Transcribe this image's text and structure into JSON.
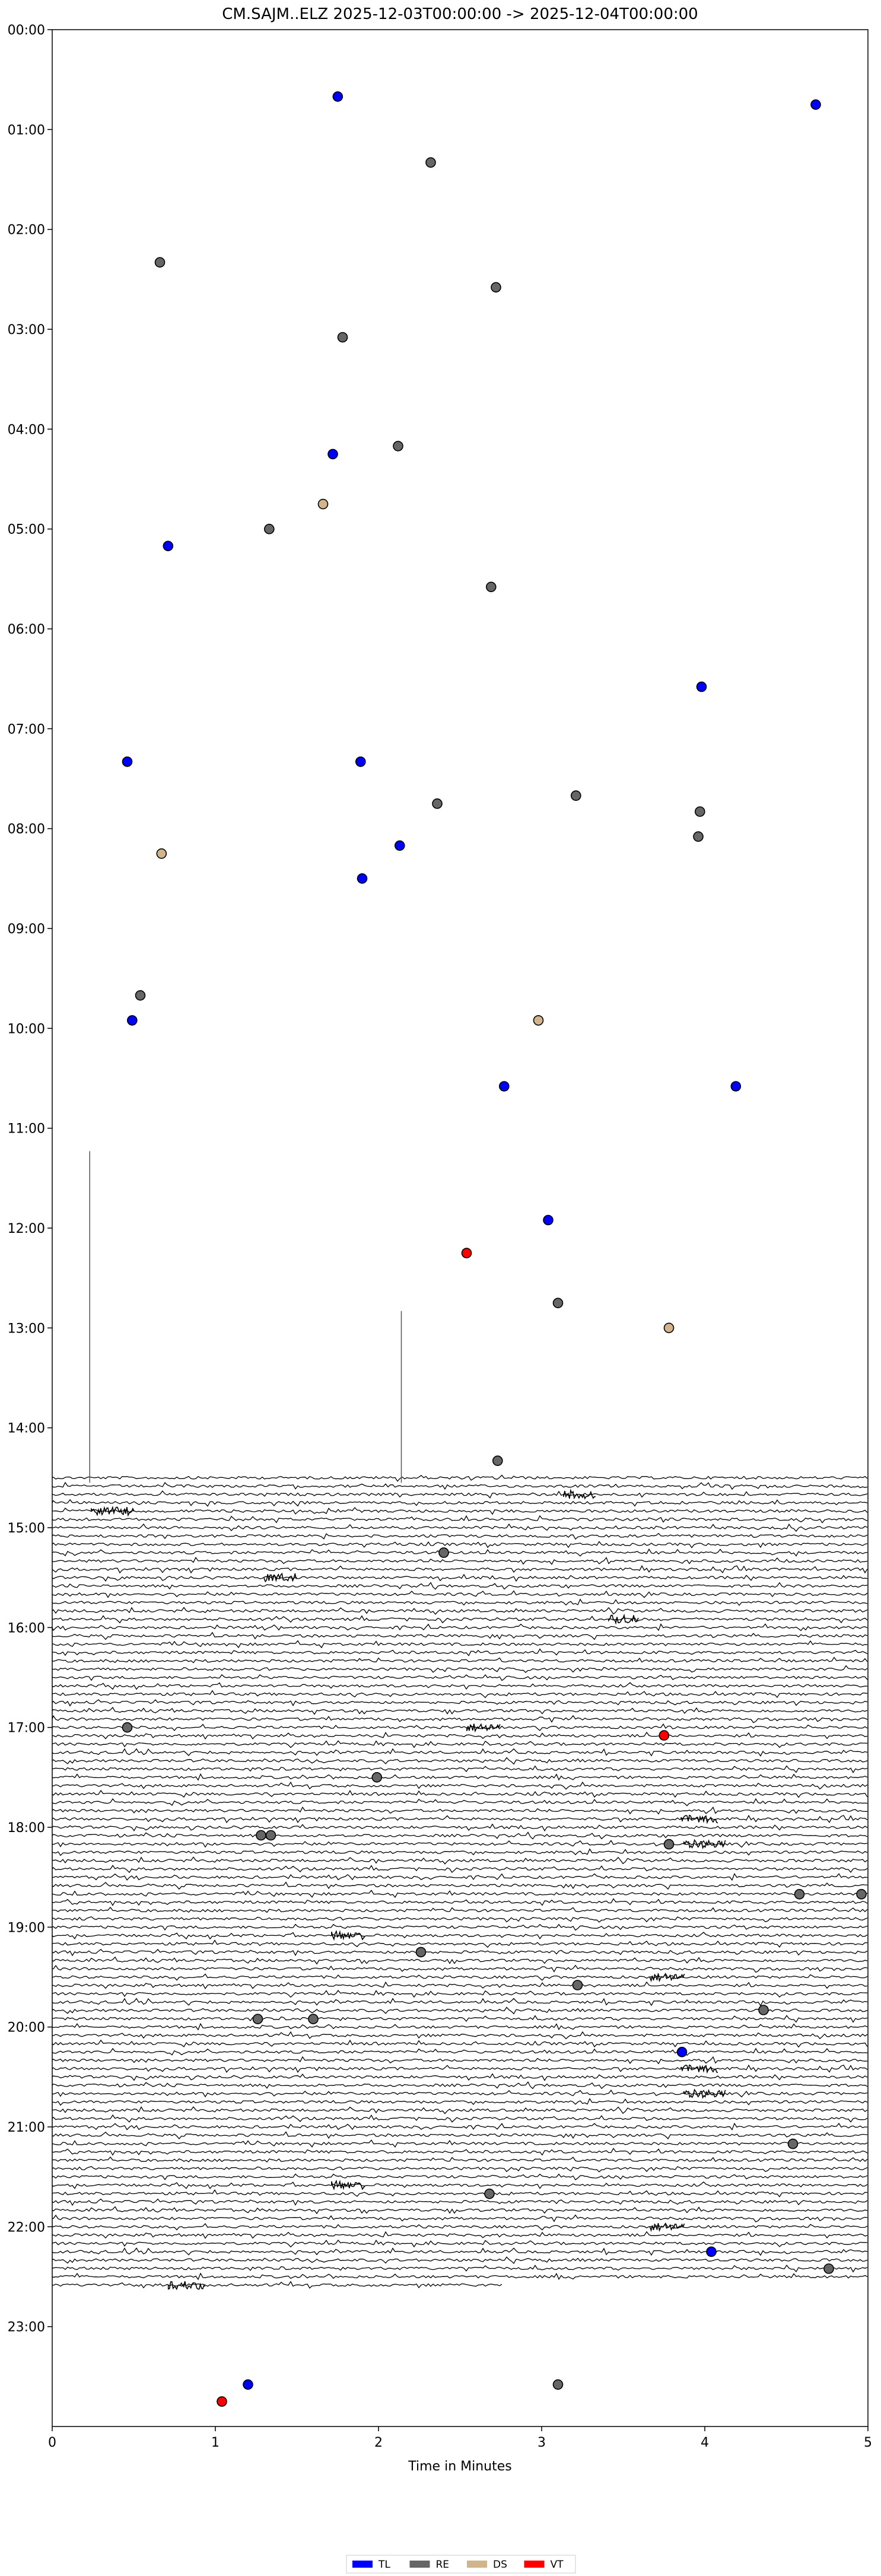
{
  "chart_data": {
    "type": "scatter",
    "title": "CM.SAJM..ELZ  2025-12-03T00:00:00 -> 2025-12-04T00:00:00",
    "xlabel": "Time in Minutes",
    "ylabel": "",
    "xlim": [
      0,
      5
    ],
    "ylim_hours": [
      0,
      24
    ],
    "y_direction": "top-to-bottom",
    "x_ticks": [
      "0",
      "1",
      "2",
      "3",
      "4",
      "5"
    ],
    "y_ticks": [
      "00:00",
      "01:00",
      "02:00",
      "03:00",
      "04:00",
      "05:00",
      "06:00",
      "07:00",
      "08:00",
      "09:00",
      "10:00",
      "11:00",
      "12:00",
      "13:00",
      "14:00",
      "15:00",
      "16:00",
      "17:00",
      "18:00",
      "19:00",
      "20:00",
      "21:00",
      "22:00",
      "23:00"
    ],
    "grid": false,
    "legend": {
      "placement": "bottom-center",
      "entries": [
        {
          "label": "TL",
          "color": "#0000ff"
        },
        {
          "label": "RE",
          "color": "#666666"
        },
        {
          "label": "DS",
          "color": "#d2b48c"
        },
        {
          "label": "VT",
          "color": "#ff0000"
        }
      ]
    },
    "trace": {
      "color": "#000000",
      "start_hour": 14.5,
      "end_hour": 22.6,
      "end_minute_last_line": 2.77,
      "line_interval_minutes": 5
    },
    "spikes": [
      {
        "x": 0.23,
        "top_hour": 11.23,
        "bottom_hour": 14.55
      },
      {
        "x": 2.14,
        "top_hour": 12.83,
        "bottom_hour": 14.55
      }
    ],
    "series": [
      {
        "name": "TL",
        "color": "#0000ff",
        "points": [
          {
            "x": 1.75,
            "hour": 0.67
          },
          {
            "x": 4.68,
            "hour": 0.75
          },
          {
            "x": 1.72,
            "hour": 4.25
          },
          {
            "x": 0.71,
            "hour": 5.17
          },
          {
            "x": 3.98,
            "hour": 6.58
          },
          {
            "x": 0.46,
            "hour": 7.33
          },
          {
            "x": 1.89,
            "hour": 7.33
          },
          {
            "x": 2.13,
            "hour": 8.17
          },
          {
            "x": 1.9,
            "hour": 8.5
          },
          {
            "x": 0.49,
            "hour": 9.92
          },
          {
            "x": 2.77,
            "hour": 10.58
          },
          {
            "x": 4.19,
            "hour": 10.58
          },
          {
            "x": 3.04,
            "hour": 11.92
          },
          {
            "x": 3.86,
            "hour": 20.25
          },
          {
            "x": 4.04,
            "hour": 22.25
          },
          {
            "x": 1.2,
            "hour": 23.58
          }
        ]
      },
      {
        "name": "RE",
        "color": "#666666",
        "points": [
          {
            "x": 2.32,
            "hour": 1.33
          },
          {
            "x": 0.66,
            "hour": 2.33
          },
          {
            "x": 2.72,
            "hour": 2.58
          },
          {
            "x": 1.78,
            "hour": 3.08
          },
          {
            "x": 2.12,
            "hour": 4.17
          },
          {
            "x": 1.33,
            "hour": 5.0
          },
          {
            "x": 2.69,
            "hour": 5.58
          },
          {
            "x": 2.36,
            "hour": 7.75
          },
          {
            "x": 3.21,
            "hour": 7.67
          },
          {
            "x": 3.97,
            "hour": 7.83
          },
          {
            "x": 3.96,
            "hour": 8.08
          },
          {
            "x": 0.54,
            "hour": 9.67
          },
          {
            "x": 3.1,
            "hour": 12.75
          },
          {
            "x": 2.73,
            "hour": 14.33
          },
          {
            "x": 2.4,
            "hour": 15.25
          },
          {
            "x": 0.46,
            "hour": 17.0
          },
          {
            "x": 1.99,
            "hour": 17.5
          },
          {
            "x": 1.28,
            "hour": 18.08
          },
          {
            "x": 1.34,
            "hour": 18.08
          },
          {
            "x": 3.78,
            "hour": 18.17
          },
          {
            "x": 4.58,
            "hour": 18.67
          },
          {
            "x": 4.96,
            "hour": 18.67
          },
          {
            "x": 2.26,
            "hour": 19.25
          },
          {
            "x": 3.22,
            "hour": 19.58
          },
          {
            "x": 4.36,
            "hour": 19.83
          },
          {
            "x": 1.26,
            "hour": 19.92
          },
          {
            "x": 1.6,
            "hour": 19.92
          },
          {
            "x": 4.54,
            "hour": 21.17
          },
          {
            "x": 2.68,
            "hour": 21.67
          },
          {
            "x": 4.76,
            "hour": 22.42
          },
          {
            "x": 3.1,
            "hour": 23.58
          }
        ]
      },
      {
        "name": "DS",
        "color": "#d2b48c",
        "points": [
          {
            "x": 1.66,
            "hour": 4.75
          },
          {
            "x": 0.67,
            "hour": 8.25
          },
          {
            "x": 2.98,
            "hour": 9.92
          },
          {
            "x": 3.78,
            "hour": 13.0
          }
        ]
      },
      {
        "name": "VT",
        "color": "#ff0000",
        "points": [
          {
            "x": 2.54,
            "hour": 12.25
          },
          {
            "x": 3.75,
            "hour": 17.08
          },
          {
            "x": 1.04,
            "hour": 23.75
          }
        ]
      }
    ]
  }
}
